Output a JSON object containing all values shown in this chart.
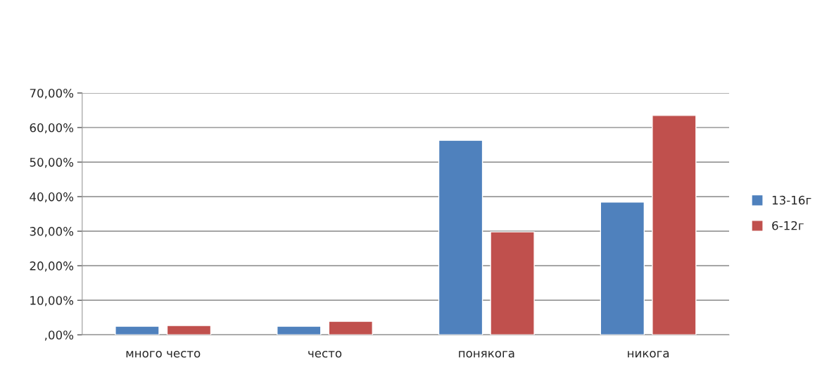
{
  "chart_data": {
    "type": "bar",
    "categories": [
      "много често",
      "често",
      "понякога",
      "никога"
    ],
    "series": [
      {
        "name": "13-16г",
        "color": "#4f81bd",
        "values": [
          2.5,
          2.5,
          56.3,
          38.4
        ]
      },
      {
        "name": "6-12г",
        "color": "#c0504d",
        "values": [
          2.7,
          3.9,
          29.8,
          63.5
        ]
      }
    ],
    "ylim": [
      0,
      70
    ],
    "yticks": [
      {
        "value": 0,
        "label": ",00%"
      },
      {
        "value": 10,
        "label": "10,00%"
      },
      {
        "value": 20,
        "label": "20,00%"
      },
      {
        "value": 30,
        "label": "30,00%"
      },
      {
        "value": 40,
        "label": "40,00%"
      },
      {
        "value": 50,
        "label": "50,00%"
      },
      {
        "value": 60,
        "label": "60,00%"
      },
      {
        "value": 70,
        "label": "70,00%"
      }
    ],
    "grid": "y",
    "legend": "right"
  }
}
